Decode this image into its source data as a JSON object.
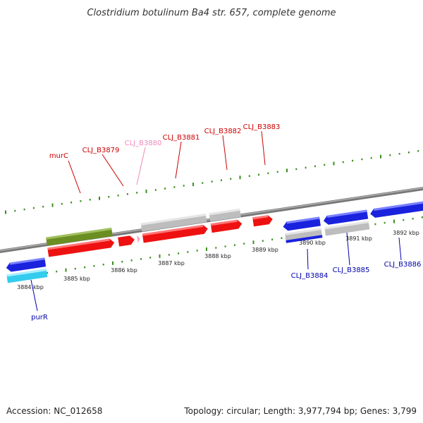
{
  "title": "Clostridium botulinum Ba4 str. 657, complete genome",
  "footer": {
    "accession": "Accession: NC_012658",
    "summary": "Topology: circular; Length: 3,977,794 bp; Genes: 3,799"
  },
  "colors": {
    "backbone": "#808080",
    "tick": "#3a8f1e",
    "red": "#ee1111",
    "blue": "#1a22dd",
    "olive": "#6b8e23",
    "gray": "#bdbdbd",
    "pink": "#f4a6c6",
    "cyan": "#33ccee",
    "label_red": "#cc0000",
    "label_blue": "#0000aa",
    "label_pink": "#ee88bb"
  },
  "ticks": [
    {
      "label": "3884 kbp"
    },
    {
      "label": "3885 kbp"
    },
    {
      "label": "3886 kbp"
    },
    {
      "label": "3887 kbp"
    },
    {
      "label": "3888 kbp"
    },
    {
      "label": "3889 kbp"
    },
    {
      "label": "3890 kbp"
    },
    {
      "label": "3891 kbp"
    },
    {
      "label": "3892 kbp"
    }
  ],
  "gene_labels": [
    {
      "name": "murC",
      "color": "red"
    },
    {
      "name": "CLJ_B3879",
      "color": "red"
    },
    {
      "name": "CLJ_B3880",
      "color": "pink"
    },
    {
      "name": "CLJ_B3881",
      "color": "red"
    },
    {
      "name": "CLJ_B3882",
      "color": "red"
    },
    {
      "name": "CLJ_B3883",
      "color": "red"
    },
    {
      "name": "CLJ_B3884",
      "color": "blue"
    },
    {
      "name": "CLJ_B3885",
      "color": "blue"
    },
    {
      "name": "CLJ_B3886",
      "color": "blue"
    },
    {
      "name": "purR",
      "color": "blue"
    }
  ]
}
